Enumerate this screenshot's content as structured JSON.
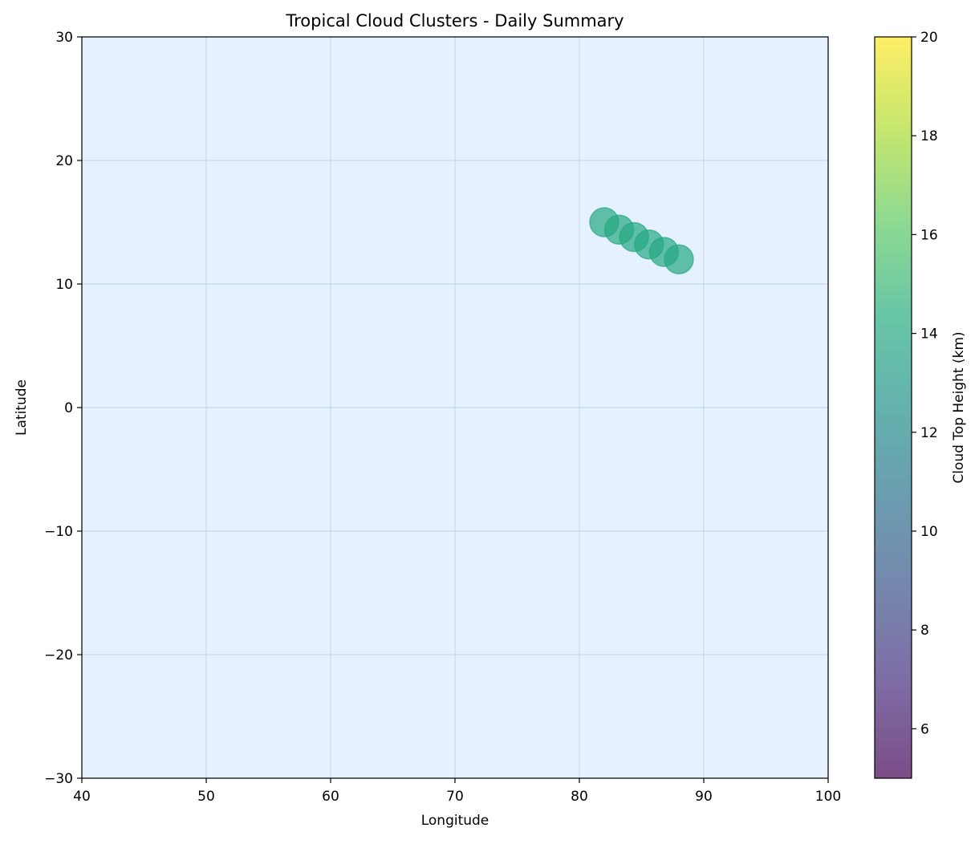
{
  "chart_data": {
    "type": "scatter",
    "title": "Tropical Cloud Clusters - Daily Summary",
    "xlabel": "Longitude",
    "ylabel": "Latitude",
    "xlim": [
      40,
      100
    ],
    "ylim": [
      -30,
      30
    ],
    "xticks": [
      40,
      50,
      60,
      70,
      80,
      90,
      100
    ],
    "yticks": [
      -30,
      -20,
      -10,
      0,
      10,
      20,
      30
    ],
    "grid": true,
    "plot_background": "#e5f1ff",
    "points": [
      {
        "x": 82.0,
        "y": 15.0,
        "value": 14.0
      },
      {
        "x": 83.2,
        "y": 14.4,
        "value": 14.0
      },
      {
        "x": 84.4,
        "y": 13.8,
        "value": 14.0
      },
      {
        "x": 85.6,
        "y": 13.2,
        "value": 14.0
      },
      {
        "x": 86.8,
        "y": 12.6,
        "value": 14.0
      },
      {
        "x": 88.0,
        "y": 12.0,
        "value": 14.0
      }
    ],
    "marker_alpha": 0.7,
    "colorbar": {
      "label": "Cloud Top Height (km)",
      "colormap": "viridis",
      "range": [
        5,
        20
      ],
      "ticks": [
        6,
        8,
        10,
        12,
        14,
        16,
        18,
        20
      ]
    }
  }
}
